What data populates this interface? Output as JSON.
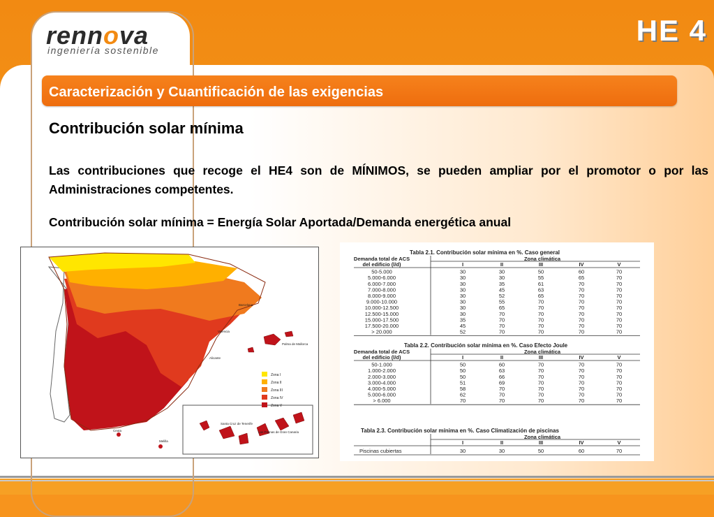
{
  "logo": {
    "name_part1": "renn",
    "name_o": "o",
    "name_part2": "va",
    "tagline": "ingeniería sostenible"
  },
  "badge": "HE  4",
  "section_title": "Caracterización y Cuantificación de las exigencias",
  "heading": "Contribución solar mínima",
  "paragraph": "Las contribuciones que recoge el HE4 son de MÍNIMOS, se pueden ampliar por el promotor o por las Administraciones competentes.",
  "formula": "Contribución solar mínima = Energía Solar Aportada/Demanda energética anual",
  "map": {
    "legend": [
      "Zona I",
      "Zona II",
      "Zona III",
      "Zona IV",
      "Zona V"
    ],
    "legend_colors": [
      "#ffe600",
      "#ffb000",
      "#f07a1e",
      "#e03a1e",
      "#c0131a"
    ],
    "labels": [
      "Santa Cruz de Tenerife",
      "Las Palmas de Gran Canaria",
      "Palma de Mallorca",
      "Ceuta",
      "Melilla",
      "Barcelona",
      "Valencia",
      "Alicante"
    ]
  },
  "table1": {
    "title": "Tabla 2.1. Contribución solar mínima en %. Caso general",
    "col_head_left": [
      "Demanda total de ACS",
      "del edificio (l/d)"
    ],
    "col_head_zone": "Zona climática",
    "zones": [
      "I",
      "II",
      "III",
      "IV",
      "V"
    ],
    "rows": [
      [
        "50-5.000",
        "30",
        "30",
        "50",
        "60",
        "70"
      ],
      [
        "5.000-6.000",
        "30",
        "30",
        "55",
        "65",
        "70"
      ],
      [
        "6.000-7.000",
        "30",
        "35",
        "61",
        "70",
        "70"
      ],
      [
        "7.000-8.000",
        "30",
        "45",
        "63",
        "70",
        "70"
      ],
      [
        "8.000-9.000",
        "30",
        "52",
        "65",
        "70",
        "70"
      ],
      [
        "9.000-10.000",
        "30",
        "55",
        "70",
        "70",
        "70"
      ],
      [
        "10.000-12.500",
        "30",
        "65",
        "70",
        "70",
        "70"
      ],
      [
        "12.500-15.000",
        "30",
        "70",
        "70",
        "70",
        "70"
      ],
      [
        "15.000-17.500",
        "35",
        "70",
        "70",
        "70",
        "70"
      ],
      [
        "17.500-20.000",
        "45",
        "70",
        "70",
        "70",
        "70"
      ],
      [
        "> 20.000",
        "52",
        "70",
        "70",
        "70",
        "70"
      ]
    ]
  },
  "table2": {
    "title": "Tabla 2.2. Contribución solar mínima en %. Caso Efecto Joule",
    "col_head_left": [
      "Demanda total de ACS",
      "del edificio (l/d)"
    ],
    "col_head_zone": "Zona climática",
    "zones": [
      "I",
      "II",
      "III",
      "IV",
      "V"
    ],
    "rows": [
      [
        "50-1.000",
        "50",
        "60",
        "70",
        "70",
        "70"
      ],
      [
        "1.000-2.000",
        "50",
        "63",
        "70",
        "70",
        "70"
      ],
      [
        "2.000-3.000",
        "50",
        "66",
        "70",
        "70",
        "70"
      ],
      [
        "3.000-4.000",
        "51",
        "69",
        "70",
        "70",
        "70"
      ],
      [
        "4.000-5.000",
        "58",
        "70",
        "70",
        "70",
        "70"
      ],
      [
        "5.000-6.000",
        "62",
        "70",
        "70",
        "70",
        "70"
      ],
      [
        "> 6.000",
        "70",
        "70",
        "70",
        "70",
        "70"
      ]
    ]
  },
  "table3": {
    "title": "Tabla 2.3. Contribución solar mínima en %. Caso Climatización de piscinas",
    "col_head_zone": "Zona climática",
    "zones": [
      "I",
      "II",
      "III",
      "IV",
      "V"
    ],
    "rows": [
      [
        "Piscinas cubiertas",
        "30",
        "30",
        "50",
        "60",
        "70"
      ]
    ]
  }
}
